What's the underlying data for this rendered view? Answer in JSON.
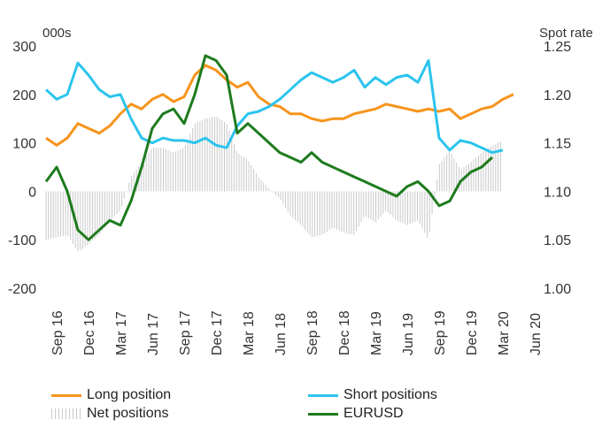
{
  "chart_data": {
    "type": "line",
    "left_unit_label": "000s",
    "right_unit_label": "Spot rate",
    "left_axis": {
      "ticks": [
        300,
        200,
        100,
        0,
        -100,
        -200
      ],
      "ylim": [
        -200,
        300
      ]
    },
    "right_axis": {
      "ticks": [
        "1.25",
        "1.20",
        "1.15",
        "1.10",
        "1.05",
        "1.00"
      ],
      "ylim": [
        1.0,
        1.25
      ]
    },
    "x_tick_labels": [
      "Sep 16",
      "Dec 16",
      "Mar 17",
      "Jun 17",
      "Sep 17",
      "Dec 17",
      "Mar 18",
      "Jun 18",
      "Sep 18",
      "Dec 18",
      "Mar 19",
      "Jun 19",
      "Sep 19",
      "Dec 19",
      "Mar 20",
      "Jun 20"
    ],
    "x_start_month_index": 0,
    "x_end_month_index": 48,
    "colors": {
      "long": "#F7941D",
      "short": "#2CC4EE",
      "net": "#C8C8C8",
      "eurusd": "#1E7B1E"
    },
    "legend": {
      "long": "Long position",
      "short": "Short positions",
      "net": "Net positions",
      "eurusd": "EURUSD"
    },
    "series": [
      {
        "name": "Long position",
        "axis": "left",
        "points": [
          [
            0,
            110
          ],
          [
            1,
            95
          ],
          [
            2,
            110
          ],
          [
            3,
            140
          ],
          [
            4,
            130
          ],
          [
            5,
            120
          ],
          [
            6,
            135
          ],
          [
            7,
            160
          ],
          [
            8,
            180
          ],
          [
            9,
            170
          ],
          [
            10,
            190
          ],
          [
            11,
            200
          ],
          [
            12,
            185
          ],
          [
            13,
            195
          ],
          [
            14,
            240
          ],
          [
            15,
            260
          ],
          [
            16,
            250
          ],
          [
            17,
            230
          ],
          [
            18,
            215
          ],
          [
            19,
            225
          ],
          [
            20,
            195
          ],
          [
            21,
            180
          ],
          [
            22,
            175
          ],
          [
            23,
            160
          ],
          [
            24,
            160
          ],
          [
            25,
            150
          ],
          [
            26,
            145
          ],
          [
            27,
            150
          ],
          [
            28,
            150
          ],
          [
            29,
            160
          ],
          [
            30,
            165
          ],
          [
            31,
            170
          ],
          [
            32,
            180
          ],
          [
            33,
            175
          ],
          [
            34,
            170
          ],
          [
            35,
            165
          ],
          [
            36,
            170
          ],
          [
            37,
            165
          ],
          [
            38,
            170
          ],
          [
            39,
            150
          ],
          [
            40,
            160
          ],
          [
            41,
            170
          ],
          [
            42,
            175
          ],
          [
            43,
            190
          ],
          [
            44,
            200
          ]
        ]
      },
      {
        "name": "Short positions",
        "axis": "right_short",
        "points": [
          [
            0,
            210
          ],
          [
            1,
            190
          ],
          [
            2,
            200
          ],
          [
            3,
            265
          ],
          [
            4,
            240
          ],
          [
            5,
            210
          ],
          [
            6,
            195
          ],
          [
            7,
            200
          ],
          [
            8,
            150
          ],
          [
            9,
            110
          ],
          [
            10,
            100
          ],
          [
            11,
            110
          ],
          [
            12,
            105
          ],
          [
            13,
            105
          ],
          [
            14,
            100
          ],
          [
            15,
            110
          ],
          [
            16,
            95
          ],
          [
            17,
            90
          ],
          [
            18,
            135
          ],
          [
            19,
            160
          ],
          [
            20,
            165
          ],
          [
            21,
            175
          ],
          [
            22,
            190
          ],
          [
            23,
            210
          ],
          [
            24,
            230
          ],
          [
            25,
            245
          ],
          [
            26,
            235
          ],
          [
            27,
            225
          ],
          [
            28,
            235
          ],
          [
            29,
            250
          ],
          [
            30,
            215
          ],
          [
            31,
            235
          ],
          [
            32,
            220
          ],
          [
            33,
            235
          ],
          [
            34,
            240
          ],
          [
            35,
            225
          ],
          [
            36,
            270
          ],
          [
            37,
            110
          ],
          [
            38,
            85
          ],
          [
            39,
            105
          ],
          [
            40,
            100
          ],
          [
            41,
            90
          ],
          [
            42,
            80
          ],
          [
            43,
            85
          ]
        ]
      },
      {
        "name": "EURUSD",
        "axis": "right",
        "points": [
          [
            0,
            1.11
          ],
          [
            1,
            1.125
          ],
          [
            2,
            1.1
          ],
          [
            3,
            1.06
          ],
          [
            4,
            1.05
          ],
          [
            5,
            1.06
          ],
          [
            6,
            1.07
          ],
          [
            7,
            1.065
          ],
          [
            8,
            1.09
          ],
          [
            9,
            1.125
          ],
          [
            10,
            1.165
          ],
          [
            11,
            1.18
          ],
          [
            12,
            1.185
          ],
          [
            13,
            1.17
          ],
          [
            14,
            1.2
          ],
          [
            15,
            1.24
          ],
          [
            16,
            1.235
          ],
          [
            17,
            1.22
          ],
          [
            18,
            1.16
          ],
          [
            19,
            1.17
          ],
          [
            20,
            1.16
          ],
          [
            21,
            1.15
          ],
          [
            22,
            1.14
          ],
          [
            23,
            1.135
          ],
          [
            24,
            1.13
          ],
          [
            25,
            1.14
          ],
          [
            26,
            1.13
          ],
          [
            27,
            1.125
          ],
          [
            28,
            1.12
          ],
          [
            29,
            1.115
          ],
          [
            30,
            1.11
          ],
          [
            31,
            1.105
          ],
          [
            32,
            1.1
          ],
          [
            33,
            1.095
          ],
          [
            34,
            1.105
          ],
          [
            35,
            1.11
          ],
          [
            36,
            1.1
          ],
          [
            37,
            1.085
          ],
          [
            38,
            1.09
          ],
          [
            39,
            1.11
          ],
          [
            40,
            1.12
          ],
          [
            41,
            1.125
          ],
          [
            42,
            1.135
          ]
        ]
      }
    ]
  }
}
